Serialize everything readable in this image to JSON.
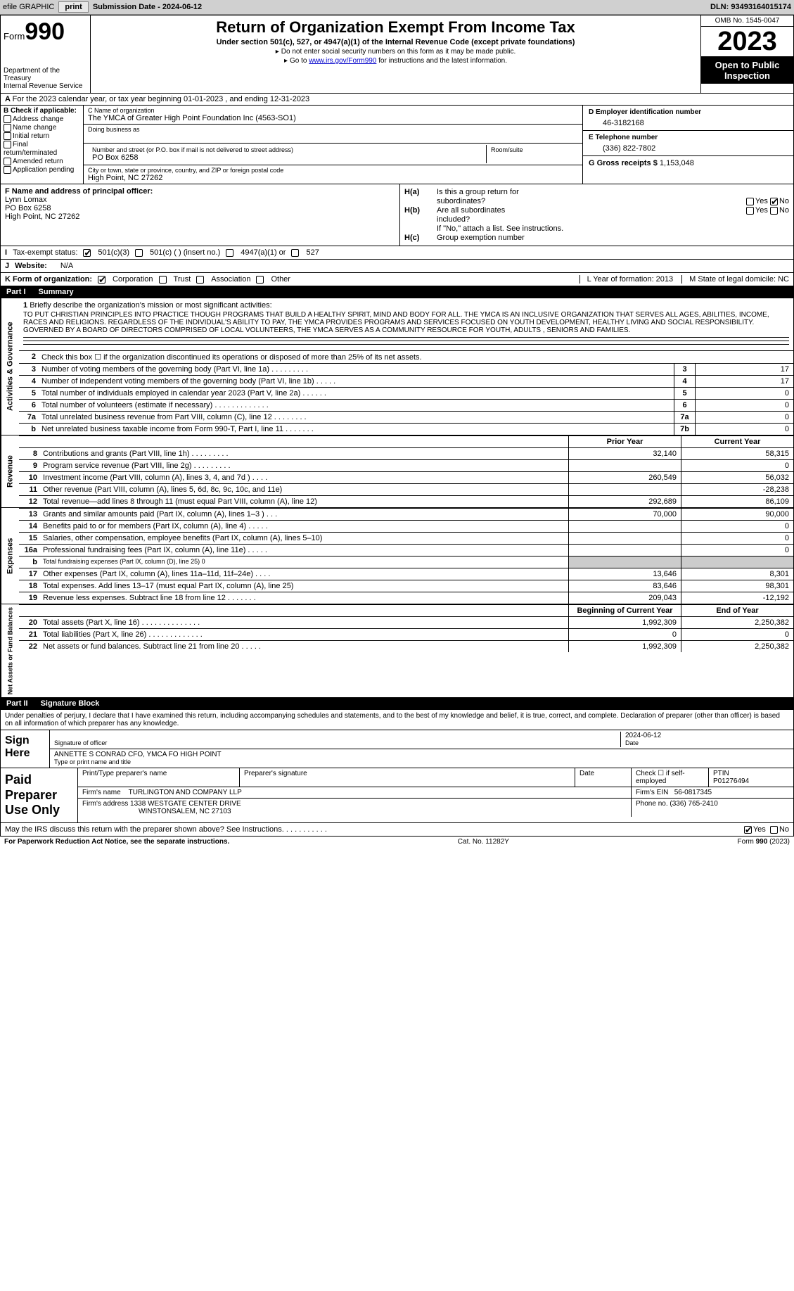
{
  "topbar": {
    "efile_label": "efile GRAPHIC",
    "print_btn": "print",
    "submission_label": "Submission Date - 2024-06-12",
    "dln": "DLN: 93493164015174"
  },
  "header": {
    "form_word": "Form",
    "form_num": "990",
    "dept1": "Department of the Treasury",
    "dept2": "Internal Revenue Service",
    "title": "Return of Organization Exempt From Income Tax",
    "sub": "Under section 501(c), 527, or 4947(a)(1) of the Internal Revenue Code (except private foundations)",
    "note1": "Do not enter social security numbers on this form as it may be made public.",
    "note2_pre": "Go to ",
    "note2_link": "www.irs.gov/Form990",
    "note2_post": " for instructions and the latest information.",
    "omb": "OMB No. 1545-0047",
    "year": "2023",
    "insp1": "Open to Public",
    "insp2": "Inspection"
  },
  "lineA": {
    "text": "For the 2023 calendar year, or tax year beginning 01-01-2023   , and ending 12-31-2023"
  },
  "B": {
    "head": "B Check if applicable:",
    "addr": "Address change",
    "name": "Name change",
    "init": "Initial return",
    "final": "Final return/terminated",
    "amend": "Amended return",
    "app": "Application pending"
  },
  "C": {
    "name_lbl": "C Name of organization",
    "name_val": "The YMCA of Greater High Point Foundation Inc (4563-SO1)",
    "dba_lbl": "Doing business as",
    "street_lbl": "Number and street (or P.O. box if mail is not delivered to street address)",
    "street_val": "PO Box 6258",
    "room_lbl": "Room/suite",
    "city_lbl": "City or town, state or province, country, and ZIP or foreign postal code",
    "city_val": "High Point, NC  27262"
  },
  "D": {
    "lbl": "D Employer identification number",
    "val": "46-3182168"
  },
  "E": {
    "lbl": "E Telephone number",
    "val": "(336) 822-7802"
  },
  "G": {
    "lbl": "G Gross receipts $",
    "val": "1,153,048"
  },
  "F": {
    "lbl": "F  Name and address of principal officer:",
    "l1": "Lynn Lomax",
    "l2": "PO Box 6258",
    "l3": "High Point, NC  27262"
  },
  "H": {
    "a1": "Is this a group return for",
    "a2": "subordinates?",
    "b1": "Are all subordinates",
    "b2": "included?",
    "note": "If \"No,\" attach a list. See instructions.",
    "c": "Group exemption number",
    "ha": "H(a)",
    "hb": "H(b)",
    "hc": "H(c)",
    "yes": "Yes",
    "no": "No"
  },
  "I": {
    "lbl": "Tax-exempt status:",
    "o1": "501(c)(3)",
    "o2": "501(c) (  ) (insert no.)",
    "o3": "4947(a)(1) or",
    "o4": "527"
  },
  "J": {
    "lbl": "Website:",
    "val": "N/A"
  },
  "K": {
    "lbl": "K Form of organization:",
    "corp": "Corporation",
    "trust": "Trust",
    "assoc": "Association",
    "other": "Other",
    "L": "L Year of formation: 2013",
    "M": "M State of legal domicile: NC"
  },
  "part1": {
    "num": "Part I",
    "title": "Summary"
  },
  "mission": {
    "n": "1",
    "lbl": "Briefly describe the organization's mission or most significant activities:",
    "txt": "TO PUT CHRISTIAN PRINCIPLES INTO PRACTICE THOUGH PROGRAMS THAT BUILD A HEALTHY SPIRIT, MIND AND BODY FOR ALL. THE YMCA IS AN INCLUSIVE ORGANIZATION THAT SERVES ALL AGES, ABILITIES, INCOME, RACES AND RELIGIONS. REGARDLESS OF THE INDIVIDUAL'S ABILITY TO PAY, THE YMCA PROVIDES PROGRAMS AND SERVICES FOCUSED ON YOUTH DEVELOPMENT, HEALTHY LIVING AND SOCIAL RESPONSIBILITY. GOVERNED BY A BOARD OF DIRECTORS COMPRISED OF LOCAL VOLUNTEERS, THE YMCA SERVES AS A COMMUNITY RESOURCE FOR YOUTH, ADULTS , SENIORS AND FAMILIES."
  },
  "gov": [
    {
      "n": "2",
      "d": "Check this box ☐ if the organization discontinued its operations or disposed of more than 25% of its net assets.",
      "b": "",
      "v": ""
    },
    {
      "n": "3",
      "d": "Number of voting members of the governing body (Part VI, line 1a)   .   .   .   .   .   .   .   .   .",
      "b": "3",
      "v": "17"
    },
    {
      "n": "4",
      "d": "Number of independent voting members of the governing body (Part VI, line 1b)   .   .   .   .   .",
      "b": "4",
      "v": "17"
    },
    {
      "n": "5",
      "d": "Total number of individuals employed in calendar year 2023 (Part V, line 2a)   .   .   .   .   .   .",
      "b": "5",
      "v": "0"
    },
    {
      "n": "6",
      "d": "Total number of volunteers (estimate if necessary)   .   .   .   .   .   .   .   .   .   .   .   .   .",
      "b": "6",
      "v": "0"
    },
    {
      "n": "7a",
      "d": "Total unrelated business revenue from Part VIII, column (C), line 12   .   .   .   .   .   .   .   .",
      "b": "7a",
      "v": "0"
    },
    {
      "n": " b",
      "d": "Net unrelated business taxable income from Form 990-T, Part I, line 11   .   .   .   .   .   .   .",
      "b": "7b",
      "v": "0"
    }
  ],
  "vtabs": {
    "gov": "Activities & Governance",
    "rev": "Revenue",
    "exp": "Expenses",
    "net": "Net Assets or Fund Balances"
  },
  "cols": {
    "prior": "Prior Year",
    "curr": "Current Year",
    "beg": "Beginning of Current Year",
    "end": "End of Year"
  },
  "rev": [
    {
      "n": "8",
      "d": "Contributions and grants (Part VIII, line 1h)   .   .   .   .   .   .   .   .   .",
      "c1": "32,140",
      "c2": "58,315"
    },
    {
      "n": "9",
      "d": "Program service revenue (Part VIII, line 2g)   .   .   .   .   .   .   .   .   .",
      "c1": "",
      "c2": "0"
    },
    {
      "n": "10",
      "d": "Investment income (Part VIII, column (A), lines 3, 4, and 7d )   .   .   .   .",
      "c1": "260,549",
      "c2": "56,032"
    },
    {
      "n": "11",
      "d": "Other revenue (Part VIII, column (A), lines 5, 6d, 8c, 9c, 10c, and 11e)",
      "c1": "",
      "c2": "-28,238"
    },
    {
      "n": "12",
      "d": "Total revenue—add lines 8 through 11 (must equal Part VIII, column (A), line 12)",
      "c1": "292,689",
      "c2": "86,109"
    }
  ],
  "exp": [
    {
      "n": "13",
      "d": "Grants and similar amounts paid (Part IX, column (A), lines 1–3 )   .   .   .",
      "c1": "70,000",
      "c2": "90,000"
    },
    {
      "n": "14",
      "d": "Benefits paid to or for members (Part IX, column (A), line 4)   .   .   .   .   .",
      "c1": "",
      "c2": "0"
    },
    {
      "n": "15",
      "d": "Salaries, other compensation, employee benefits (Part IX, column (A), lines 5–10)",
      "c1": "",
      "c2": "0"
    },
    {
      "n": "16a",
      "d": "Professional fundraising fees (Part IX, column (A), line 11e)   .   .   .   .   .",
      "c1": "",
      "c2": "0"
    },
    {
      "n": "b",
      "d": "Total fundraising expenses (Part IX, column (D), line 25) 0",
      "c1": "shaded",
      "c2": "shaded",
      "small": true
    },
    {
      "n": "17",
      "d": "Other expenses (Part IX, column (A), lines 11a–11d, 11f–24e)   .   .   .   .",
      "c1": "13,646",
      "c2": "8,301"
    },
    {
      "n": "18",
      "d": "Total expenses. Add lines 13–17 (must equal Part IX, column (A), line 25)",
      "c1": "83,646",
      "c2": "98,301"
    },
    {
      "n": "19",
      "d": "Revenue less expenses. Subtract line 18 from line 12   .   .   .   .   .   .   .",
      "c1": "209,043",
      "c2": "-12,192"
    }
  ],
  "net": [
    {
      "n": "20",
      "d": "Total assets (Part X, line 16)   .   .   .   .   .   .   .   .   .   .   .   .   .   .",
      "c1": "1,992,309",
      "c2": "2,250,382"
    },
    {
      "n": "21",
      "d": "Total liabilities (Part X, line 26)   .   .   .   .   .   .   .   .   .   .   .   .   .",
      "c1": "0",
      "c2": "0"
    },
    {
      "n": "22",
      "d": "Net assets or fund balances. Subtract line 21 from line 20   .   .   .   .   .",
      "c1": "1,992,309",
      "c2": "2,250,382"
    }
  ],
  "part2": {
    "num": "Part II",
    "title": "Signature Block"
  },
  "sig_decl": "Under penalties of perjury, I declare that I have examined this return, including accompanying schedules and statements, and to the best of my knowledge and belief, it is true, correct, and complete. Declaration of preparer (other than officer) is based on all information of which preparer has any knowledge.",
  "sign": {
    "lbl1": "Sign",
    "lbl2": "Here",
    "date": "2024-06-12",
    "sig_lbl": "Signature of officer",
    "date_lbl": "Date",
    "name": "ANNETTE S CONRAD CFO, YMCA FO HIGH POINT",
    "name_lbl": "Type or print name and title"
  },
  "paid": {
    "lbl1": "Paid",
    "lbl2": "Preparer",
    "lbl3": "Use Only",
    "h1": "Print/Type preparer's name",
    "h2": "Preparer's signature",
    "h3": "Date",
    "h4": "Check ☐ if self-employed",
    "h5": "PTIN",
    "ptin": "P01276494",
    "firm_lbl": "Firm's name",
    "firm": "TURLINGTON AND COMPANY LLP",
    "ein_lbl": "Firm's EIN",
    "ein": "56-0817345",
    "addr_lbl": "Firm's address",
    "addr1": "1338 WESTGATE CENTER DRIVE",
    "addr2": "WINSTONSALEM, NC  27103",
    "phone_lbl": "Phone no.",
    "phone": "(336) 765-2410"
  },
  "discuss": {
    "q": "May the IRS discuss this return with the preparer shown above? See Instructions.   .   .   .   .   .   .   .   .   .   .",
    "yes": "Yes",
    "no": "No"
  },
  "footer": {
    "left": "For Paperwork Reduction Act Notice, see the separate instructions.",
    "mid": "Cat. No. 11282Y",
    "right": "Form 990 (2023)"
  }
}
